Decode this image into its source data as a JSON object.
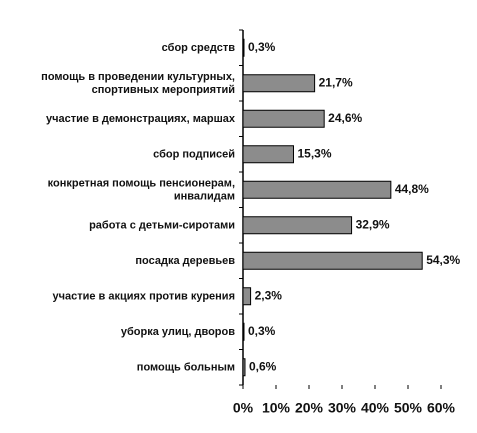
{
  "chart_data": {
    "type": "bar",
    "orientation": "horizontal",
    "categories": [
      "сбор средств",
      "помощь в проведении культурных,\nспортивных мероприятий",
      "участие в демонстрациях, маршах",
      "сбор подписей",
      "конкретная помощь пенсионерам,\nинвалидам",
      "работа с детьми-сиротами",
      "посадка деревьев",
      "участие в акциях против курения",
      "уборка улиц, дворов",
      "помощь больным"
    ],
    "values": [
      0.3,
      21.7,
      24.6,
      15.3,
      44.8,
      32.9,
      54.3,
      2.3,
      0.3,
      0.6
    ],
    "value_labels": [
      "0,3%",
      "21,7%",
      "24,6%",
      "15,3%",
      "44,8%",
      "32,9%",
      "54,3%",
      "2,3%",
      "0,3%",
      "0,6%"
    ],
    "color": "#8c8c8c",
    "xlim": [
      0,
      60
    ],
    "xticks": [
      {
        "value": 0,
        "label": "0%"
      },
      {
        "value": 10,
        "label": "10%"
      },
      {
        "value": 20,
        "label": "20%"
      },
      {
        "value": 30,
        "label": "30%"
      },
      {
        "value": 40,
        "label": "40%"
      },
      {
        "value": 50,
        "label": "50%"
      },
      {
        "value": 60,
        "label": "60%"
      }
    ]
  }
}
